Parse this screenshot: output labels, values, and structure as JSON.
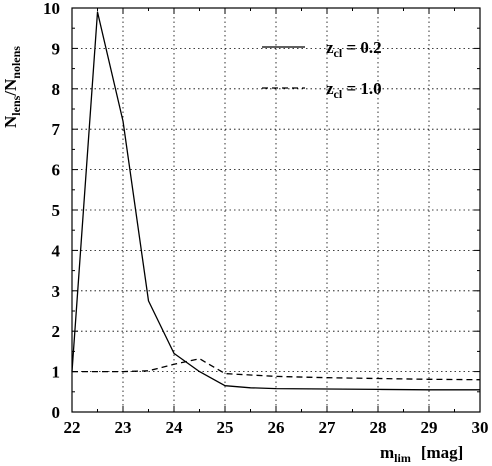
{
  "chart_data": {
    "type": "line",
    "xlabel": {
      "main": "m",
      "sub": "lim",
      "unit": "[mag]"
    },
    "ylabel": {
      "main": "N",
      "sub1": "lens",
      "slash": "/N",
      "sub2": "nolens"
    },
    "xlim": [
      22,
      30
    ],
    "ylim": [
      0,
      10
    ],
    "xticks": [
      22,
      23,
      24,
      25,
      26,
      27,
      28,
      29,
      30
    ],
    "yticks": [
      0,
      1,
      2,
      3,
      4,
      5,
      6,
      7,
      8,
      9,
      10
    ],
    "grid": true,
    "legend_position": "top-right",
    "series": [
      {
        "legend_main": "z",
        "legend_sub": "cl",
        "legend_value": " = 0.2",
        "style": "solid",
        "color": "#000000",
        "x": [
          22.0,
          22.5,
          23.0,
          23.5,
          24.0,
          24.5,
          25.0,
          25.5,
          26.0,
          27.0,
          28.0,
          29.0,
          30.0
        ],
        "y": [
          1.0,
          9.9,
          7.2,
          2.75,
          1.45,
          1.0,
          0.65,
          0.6,
          0.58,
          0.57,
          0.56,
          0.55,
          0.55
        ]
      },
      {
        "legend_main": "z",
        "legend_sub": "cl",
        "legend_value": " = 1.0",
        "style": "dashed",
        "color": "#000000",
        "x": [
          22.0,
          23.0,
          23.5,
          24.0,
          24.5,
          25.0,
          26.0,
          27.0,
          28.0,
          29.0,
          30.0
        ],
        "y": [
          1.0,
          1.0,
          1.02,
          1.18,
          1.32,
          0.95,
          0.88,
          0.85,
          0.83,
          0.81,
          0.8
        ]
      }
    ]
  }
}
